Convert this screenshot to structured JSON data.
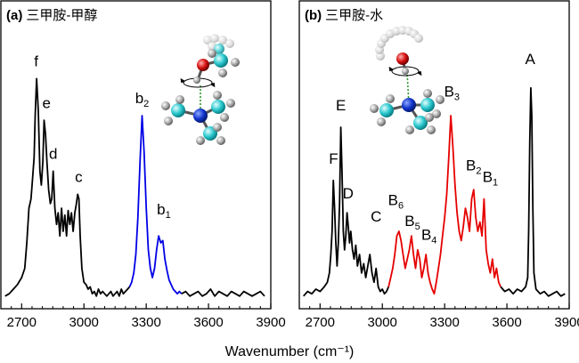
{
  "xlabel": "Wavenumber (cm⁻¹)",
  "chart_data": [
    {
      "type": "line",
      "panel_label": "(a)",
      "title": "三甲胺-甲醇",
      "xlim": [
        2600,
        3900
      ],
      "xticks": [
        2700,
        3000,
        3300,
        3600,
        3900
      ],
      "ylim": [
        0,
        1
      ],
      "y_ticks_shown": false,
      "grid": false,
      "series": [
        {
          "segment": "black",
          "color": "#000000",
          "x": [
            2620,
            2640,
            2660,
            2680,
            2700,
            2715,
            2725,
            2735,
            2745,
            2752,
            2760,
            2765,
            2772,
            2780,
            2788,
            2795,
            2802,
            2808,
            2815,
            2822,
            2830,
            2838,
            2845,
            2852,
            2860,
            2868,
            2876,
            2884,
            2892,
            2900,
            2908,
            2916,
            2924,
            2932,
            2940,
            2948,
            2956,
            2964,
            2970,
            2976,
            2982,
            2990,
            3000,
            3010,
            3020,
            3030,
            3040,
            3050,
            3060,
            3070,
            3080,
            3090,
            3100,
            3110,
            3120,
            3130,
            3140,
            3150,
            3160,
            3170,
            3180,
            3190,
            3200,
            3210,
            3220
          ],
          "y": [
            0.02,
            0.03,
            0.05,
            0.07,
            0.1,
            0.14,
            0.25,
            0.4,
            0.44,
            0.52,
            0.62,
            0.8,
            0.96,
            0.82,
            0.56,
            0.5,
            0.6,
            0.78,
            0.72,
            0.6,
            0.48,
            0.42,
            0.44,
            0.56,
            0.4,
            0.33,
            0.38,
            0.28,
            0.4,
            0.3,
            0.37,
            0.28,
            0.39,
            0.33,
            0.38,
            0.3,
            0.38,
            0.42,
            0.46,
            0.44,
            0.28,
            0.14,
            0.08,
            0.07,
            0.05,
            0.06,
            0.03,
            0.04,
            0.02,
            0.05,
            0.03,
            0.04,
            0.03,
            0.02,
            0.03,
            0.04,
            0.02,
            0.03,
            0.04,
            0.02,
            0.05,
            0.03,
            0.04,
            0.05,
            0.06
          ]
        },
        {
          "segment": "blue",
          "color": "#0000e6",
          "x": [
            3220,
            3230,
            3240,
            3250,
            3260,
            3270,
            3280,
            3290,
            3300,
            3310,
            3320,
            3330,
            3340,
            3350,
            3360,
            3370,
            3380,
            3390,
            3400,
            3410,
            3420,
            3430,
            3440,
            3450,
            3460,
            3470
          ],
          "y": [
            0.06,
            0.08,
            0.12,
            0.2,
            0.36,
            0.6,
            0.8,
            0.64,
            0.4,
            0.22,
            0.14,
            0.1,
            0.14,
            0.22,
            0.28,
            0.25,
            0.26,
            0.18,
            0.13,
            0.09,
            0.07,
            0.05,
            0.04,
            0.03,
            0.04,
            0.03
          ]
        },
        {
          "segment": "black-tail",
          "color": "#000000",
          "x": [
            3470,
            3490,
            3510,
            3530,
            3550,
            3570,
            3590,
            3610,
            3630,
            3650,
            3670,
            3690,
            3710,
            3730,
            3750,
            3770,
            3790,
            3810,
            3830,
            3850,
            3870
          ],
          "y": [
            0.03,
            0.04,
            0.02,
            0.03,
            0.04,
            0.02,
            0.03,
            0.05,
            0.02,
            0.04,
            0.03,
            0.02,
            0.04,
            0.03,
            0.02,
            0.04,
            0.03,
            0.02,
            0.03,
            0.04,
            0.02
          ]
        }
      ],
      "peak_labels": [
        {
          "text": "f",
          "sub": "",
          "x": 2770,
          "y": 0.99
        },
        {
          "text": "e",
          "sub": "",
          "x": 2820,
          "y": 0.81
        },
        {
          "text": "d",
          "sub": "",
          "x": 2852,
          "y": 0.59
        },
        {
          "text": "c",
          "sub": "",
          "x": 2975,
          "y": 0.49
        },
        {
          "text": "b",
          "sub": "2",
          "x": 3280,
          "y": 0.83
        },
        {
          "text": "b",
          "sub": "1",
          "x": 3385,
          "y": 0.35
        }
      ]
    },
    {
      "type": "line",
      "panel_label": "(b)",
      "title": "三甲胺-水",
      "xlim": [
        2600,
        3900
      ],
      "xticks": [
        2700,
        3000,
        3300,
        3600,
        3900
      ],
      "ylim": [
        0,
        1
      ],
      "y_ticks_shown": false,
      "grid": false,
      "series": [
        {
          "segment": "black",
          "color": "#000000",
          "x": [
            2620,
            2640,
            2660,
            2680,
            2700,
            2720,
            2735,
            2745,
            2752,
            2758,
            2764,
            2770,
            2776,
            2782,
            2788,
            2794,
            2800,
            2806,
            2812,
            2818,
            2824,
            2830,
            2836,
            2842,
            2848,
            2856,
            2864,
            2872,
            2880,
            2890,
            2900,
            2910,
            2920,
            2930,
            2940,
            2950,
            2960,
            2970,
            2980,
            2990,
            3000,
            3010,
            3020,
            3030
          ],
          "y": [
            0.02,
            0.04,
            0.03,
            0.05,
            0.04,
            0.06,
            0.08,
            0.12,
            0.2,
            0.3,
            0.52,
            0.4,
            0.25,
            0.15,
            0.25,
            0.42,
            0.75,
            0.55,
            0.3,
            0.22,
            0.28,
            0.38,
            0.32,
            0.25,
            0.3,
            0.22,
            0.18,
            0.24,
            0.15,
            0.2,
            0.12,
            0.16,
            0.1,
            0.15,
            0.2,
            0.12,
            0.08,
            0.14,
            0.06,
            0.04,
            0.05,
            0.03,
            0.04,
            0.06
          ]
        },
        {
          "segment": "red",
          "color": "#e60000",
          "x": [
            3030,
            3040,
            3050,
            3060,
            3070,
            3080,
            3090,
            3100,
            3110,
            3120,
            3130,
            3140,
            3150,
            3160,
            3170,
            3180,
            3190,
            3200,
            3210,
            3220,
            3230,
            3240,
            3250,
            3260,
            3270,
            3280,
            3290,
            3300,
            3310,
            3320,
            3330,
            3340,
            3350,
            3360,
            3370,
            3380,
            3390,
            3400,
            3410,
            3420,
            3430,
            3440,
            3450,
            3460,
            3470,
            3480,
            3490,
            3500,
            3510,
            3520,
            3530,
            3540,
            3550,
            3560,
            3570
          ],
          "y": [
            0.06,
            0.1,
            0.14,
            0.2,
            0.28,
            0.3,
            0.26,
            0.2,
            0.14,
            0.18,
            0.22,
            0.28,
            0.2,
            0.14,
            0.22,
            0.18,
            0.1,
            0.14,
            0.2,
            0.12,
            0.08,
            0.05,
            0.03,
            0.08,
            0.14,
            0.2,
            0.28,
            0.36,
            0.46,
            0.62,
            0.8,
            0.66,
            0.5,
            0.38,
            0.3,
            0.26,
            0.32,
            0.4,
            0.36,
            0.3,
            0.44,
            0.48,
            0.36,
            0.3,
            0.34,
            0.28,
            0.44,
            0.22,
            0.16,
            0.12,
            0.18,
            0.1,
            0.14,
            0.08,
            0.06
          ]
        },
        {
          "segment": "black-tail",
          "color": "#000000",
          "x": [
            3570,
            3590,
            3610,
            3630,
            3650,
            3670,
            3690,
            3700,
            3705,
            3710,
            3715,
            3720,
            3725,
            3730,
            3740,
            3760,
            3780,
            3800,
            3820,
            3840,
            3860,
            3880
          ],
          "y": [
            0.06,
            0.04,
            0.05,
            0.03,
            0.05,
            0.04,
            0.06,
            0.1,
            0.3,
            0.68,
            0.92,
            0.8,
            0.4,
            0.12,
            0.05,
            0.03,
            0.04,
            0.02,
            0.03,
            0.04,
            0.02,
            0.03
          ]
        }
      ],
      "peak_labels": [
        {
          "text": "F",
          "sub": "",
          "x": 2765,
          "y": 0.57
        },
        {
          "text": "E",
          "sub": "",
          "x": 2800,
          "y": 0.8
        },
        {
          "text": "D",
          "sub": "",
          "x": 2835,
          "y": 0.42
        },
        {
          "text": "C",
          "sub": "",
          "x": 2970,
          "y": 0.32
        },
        {
          "text": "B",
          "sub": "6",
          "x": 3065,
          "y": 0.39
        },
        {
          "text": "B",
          "sub": "5",
          "x": 3145,
          "y": 0.3
        },
        {
          "text": "B",
          "sub": "4",
          "x": 3225,
          "y": 0.24
        },
        {
          "text": "B",
          "sub": "3",
          "x": 3335,
          "y": 0.86
        },
        {
          "text": "B",
          "sub": "2",
          "x": 3440,
          "y": 0.54
        },
        {
          "text": "B",
          "sub": "1",
          "x": 3520,
          "y": 0.49
        },
        {
          "text": "A",
          "sub": "",
          "x": 3712,
          "y": 1.0
        }
      ]
    }
  ]
}
